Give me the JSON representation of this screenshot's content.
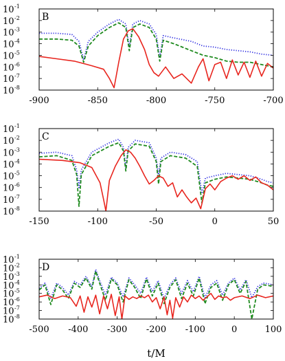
{
  "chart_data": [
    {
      "panel_label": "B",
      "type": "line",
      "yscale": "log",
      "xlim": [
        -900,
        -700
      ],
      "ylim_exp": [
        -8,
        -1
      ],
      "xticks": [
        "-900",
        "-850",
        "-800",
        "-750",
        "-700"
      ],
      "xtick_values": [
        -900,
        -850,
        -800,
        -750,
        -700
      ],
      "ytick_exponents": [
        "-8",
        "-7",
        "-6",
        "-5",
        "-4",
        "-3",
        "-2",
        "-1"
      ],
      "ytick_base": "10",
      "series": [
        {
          "color": "#2a2ae0",
          "style": "dotted",
          "x": [
            -900,
            -885,
            -872,
            -866,
            -862,
            -858,
            -850,
            -840,
            -832,
            -826,
            -823,
            -820,
            -814,
            -806,
            -800,
            -797,
            -794,
            -785,
            -770,
            -760,
            -750,
            -740,
            -730,
            -720,
            -710,
            -700
          ],
          "y_exp": [
            -3.1,
            -3.1,
            -3.2,
            -3.8,
            -5.4,
            -3.8,
            -3.0,
            -2.3,
            -1.9,
            -2.3,
            -4.3,
            -2.3,
            -2.0,
            -2.3,
            -3.2,
            -5.2,
            -3.3,
            -3.5,
            -3.8,
            -4.2,
            -4.3,
            -4.5,
            -4.6,
            -4.7,
            -4.9,
            -5.0
          ]
        },
        {
          "color": "#1e8a1e",
          "style": "dashed",
          "x": [
            -900,
            -885,
            -872,
            -866,
            -862,
            -858,
            -850,
            -840,
            -832,
            -826,
            -823,
            -820,
            -814,
            -806,
            -800,
            -797,
            -794,
            -785,
            -770,
            -760,
            -750,
            -740,
            -730,
            -720,
            -710,
            -700
          ],
          "y_exp": [
            -3.6,
            -3.6,
            -3.7,
            -4.2,
            -5.6,
            -4.2,
            -3.3,
            -2.6,
            -2.2,
            -2.6,
            -4.6,
            -2.6,
            -2.3,
            -2.6,
            -3.6,
            -5.5,
            -3.7,
            -4.0,
            -4.6,
            -5.0,
            -5.2,
            -5.5,
            -5.6,
            -5.6,
            -5.8,
            -6.0
          ]
        },
        {
          "color": "#e8251e",
          "style": "solid",
          "x": [
            -900,
            -885,
            -870,
            -855,
            -845,
            -840,
            -836,
            -832,
            -828,
            -824,
            -820,
            -815,
            -810,
            -806,
            -802,
            -798,
            -792,
            -785,
            -778,
            -770,
            -764,
            -760,
            -755,
            -750,
            -745,
            -740,
            -735,
            -730,
            -725,
            -720,
            -715,
            -710,
            -705,
            -700
          ],
          "y_exp": [
            -5.1,
            -5.3,
            -5.5,
            -5.9,
            -6.2,
            -7.0,
            -7.8,
            -5.6,
            -3.6,
            -2.9,
            -2.7,
            -3.4,
            -4.5,
            -5.8,
            -6.5,
            -6.8,
            -6.0,
            -7.0,
            -6.6,
            -7.4,
            -6.0,
            -5.3,
            -7.2,
            -5.8,
            -5.6,
            -7.0,
            -5.4,
            -6.7,
            -5.6,
            -6.9,
            -5.5,
            -6.8,
            -5.7,
            -6.1
          ]
        }
      ]
    },
    {
      "panel_label": "C",
      "type": "line",
      "yscale": "log",
      "xlim": [
        -150,
        50
      ],
      "ylim_exp": [
        -8,
        -1
      ],
      "xticks": [
        "-150",
        "-100",
        "-50",
        "0",
        "50"
      ],
      "xtick_values": [
        -150,
        -100,
        -50,
        0,
        50
      ],
      "ytick_exponents": [
        "-8",
        "-7",
        "-6",
        "-5",
        "-4",
        "-3",
        "-2",
        "-1"
      ],
      "ytick_base": "10",
      "series": [
        {
          "color": "#2a2ae0",
          "style": "dotted",
          "x": [
            -150,
            -135,
            -122,
            -118,
            -116,
            -114,
            -105,
            -90,
            -82,
            -78,
            -76,
            -74,
            -68,
            -56,
            -50,
            -48,
            -46,
            -38,
            -25,
            -15,
            -11,
            -8,
            0,
            10,
            20,
            30,
            40,
            45,
            50
          ],
          "y_exp": [
            -3.1,
            -3.0,
            -3.3,
            -4.5,
            -6.0,
            -4.5,
            -3.0,
            -2.2,
            -1.9,
            -2.6,
            -4.3,
            -2.6,
            -2.0,
            -2.2,
            -3.5,
            -5.0,
            -3.5,
            -3.0,
            -3.2,
            -3.8,
            -6.5,
            -5.2,
            -5.0,
            -4.8,
            -4.9,
            -5.0,
            -5.3,
            -5.5,
            -5.6
          ]
        },
        {
          "color": "#1e8a1e",
          "style": "dashed",
          "x": [
            -150,
            -135,
            -122,
            -118,
            -116,
            -114,
            -105,
            -90,
            -82,
            -78,
            -76,
            -74,
            -68,
            -56,
            -50,
            -48,
            -46,
            -38,
            -25,
            -15,
            -11,
            -8,
            0,
            10,
            20,
            30,
            40,
            45,
            50
          ],
          "y_exp": [
            -3.4,
            -3.3,
            -3.7,
            -4.9,
            -7.6,
            -4.9,
            -3.3,
            -2.5,
            -2.2,
            -2.9,
            -4.6,
            -2.9,
            -2.3,
            -2.5,
            -3.8,
            -5.7,
            -3.8,
            -3.3,
            -3.5,
            -4.2,
            -7.3,
            -5.6,
            -5.3,
            -5.1,
            -5.2,
            -5.3,
            -5.6,
            -5.8,
            -5.9
          ]
        },
        {
          "color": "#e8251e",
          "style": "solid",
          "x": [
            -150,
            -130,
            -115,
            -105,
            -98,
            -95,
            -93,
            -90,
            -85,
            -80,
            -76,
            -72,
            -68,
            -64,
            -60,
            -56,
            -52,
            -48,
            -44,
            -40,
            -36,
            -32,
            -28,
            -24,
            -20,
            -16,
            -12,
            -8,
            -4,
            0,
            5,
            10,
            15,
            20,
            25,
            30,
            35,
            40,
            45,
            50
          ],
          "y_exp": [
            -3.6,
            -3.7,
            -3.9,
            -4.3,
            -5.6,
            -7.0,
            -8.0,
            -5.4,
            -4.2,
            -3.3,
            -2.8,
            -3.0,
            -3.5,
            -4.2,
            -5.0,
            -5.7,
            -5.4,
            -5.0,
            -5.2,
            -5.9,
            -5.6,
            -6.8,
            -6.2,
            -6.8,
            -7.3,
            -6.9,
            -7.8,
            -6.1,
            -5.7,
            -6.2,
            -5.5,
            -5.2,
            -5.0,
            -5.3,
            -5.0,
            -5.4,
            -5.1,
            -5.6,
            -5.8,
            -6.2
          ]
        }
      ]
    },
    {
      "panel_label": "D",
      "type": "line",
      "yscale": "log",
      "xlim": [
        -500,
        100
      ],
      "ylim_exp": [
        -8,
        -1
      ],
      "xticks": [
        "-500",
        "-400",
        "-300",
        "-200",
        "-100",
        "0",
        "100"
      ],
      "xtick_values": [
        -500,
        -400,
        -300,
        -200,
        -100,
        0,
        100
      ],
      "ytick_exponents": [
        "-8",
        "-7",
        "-6",
        "-5",
        "-4",
        "-3",
        "-2",
        "-1"
      ],
      "ytick_base": "10",
      "xlabel": "t/M",
      "series": [
        {
          "color": "#2a2ae0",
          "style": "dotted",
          "x": [
            -500,
            -485,
            -470,
            -455,
            -440,
            -425,
            -410,
            -395,
            -380,
            -365,
            -355,
            -345,
            -330,
            -315,
            -300,
            -285,
            -270,
            -255,
            -240,
            -225,
            -210,
            -195,
            -180,
            -165,
            -150,
            -135,
            -120,
            -105,
            -90,
            -75,
            -60,
            -45,
            -30,
            -15,
            0,
            15,
            30,
            45,
            60,
            75,
            90,
            100
          ],
          "y_exp": [
            -4.4,
            -3.8,
            -5.6,
            -3.8,
            -4.3,
            -5.2,
            -3.6,
            -4.0,
            -3.0,
            -4.2,
            -2.2,
            -3.5,
            -5.2,
            -3.1,
            -3.8,
            -5.4,
            -3.2,
            -4.0,
            -5.0,
            -3.1,
            -4.8,
            -3.5,
            -5.6,
            -4.0,
            -3.2,
            -5.0,
            -3.5,
            -4.8,
            -3.0,
            -5.5,
            -4.0,
            -3.5,
            -5.2,
            -3.8,
            -3.2,
            -4.6,
            -3.4,
            -5.5,
            -4.2,
            -3.8,
            -3.9,
            -4.0
          ]
        },
        {
          "color": "#1e8a1e",
          "style": "dashed",
          "x": [
            -500,
            -485,
            -470,
            -455,
            -440,
            -425,
            -410,
            -395,
            -380,
            -365,
            -355,
            -345,
            -330,
            -315,
            -300,
            -285,
            -270,
            -255,
            -240,
            -225,
            -210,
            -195,
            -180,
            -165,
            -150,
            -135,
            -120,
            -105,
            -90,
            -75,
            -60,
            -45,
            -30,
            -15,
            0,
            15,
            30,
            45,
            60,
            75,
            90,
            100
          ],
          "y_exp": [
            -4.6,
            -4.0,
            -6.3,
            -4.0,
            -4.6,
            -5.6,
            -3.8,
            -4.3,
            -3.2,
            -4.5,
            -2.4,
            -3.8,
            -5.8,
            -3.3,
            -4.0,
            -6.0,
            -3.4,
            -4.3,
            -5.6,
            -3.3,
            -5.3,
            -3.8,
            -6.2,
            -4.3,
            -3.4,
            -5.6,
            -3.8,
            -5.3,
            -3.2,
            -6.2,
            -4.3,
            -3.8,
            -5.8,
            -4.0,
            -3.4,
            -5.0,
            -3.6,
            -8.0,
            -4.5,
            -4.0,
            -4.1,
            -4.2
          ]
        },
        {
          "color": "#e8251e",
          "style": "solid",
          "x": [
            -500,
            -480,
            -460,
            -440,
            -420,
            -405,
            -395,
            -385,
            -375,
            -365,
            -355,
            -345,
            -335,
            -325,
            -315,
            -305,
            -295,
            -288,
            -280,
            -270,
            -260,
            -250,
            -240,
            -230,
            -220,
            -210,
            -200,
            -190,
            -180,
            -172,
            -165,
            -158,
            -150,
            -140,
            -130,
            -120,
            -110,
            -100,
            -90,
            -80,
            -70,
            -60,
            -50,
            -40,
            -30,
            -20,
            -10,
            0,
            20,
            40,
            60,
            80,
            100
          ],
          "y_exp": [
            -5.4,
            -5.2,
            -5.6,
            -5.3,
            -5.5,
            -6.5,
            -5.3,
            -7.2,
            -5.4,
            -6.6,
            -5.2,
            -7.4,
            -5.3,
            -6.8,
            -5.1,
            -7.6,
            -5.4,
            -8.0,
            -5.3,
            -5.7,
            -5.4,
            -5.6,
            -5.3,
            -5.5,
            -5.2,
            -6.0,
            -5.5,
            -6.8,
            -5.4,
            -7.5,
            -5.8,
            -7.9,
            -5.5,
            -6.6,
            -5.4,
            -6.0,
            -5.2,
            -5.6,
            -5.3,
            -5.8,
            -5.4,
            -5.0,
            -5.7,
            -5.3,
            -5.5,
            -5.4,
            -5.8,
            -5.5,
            -5.3,
            -5.6,
            -5.2,
            -5.5,
            -5.3
          ]
        }
      ]
    }
  ]
}
